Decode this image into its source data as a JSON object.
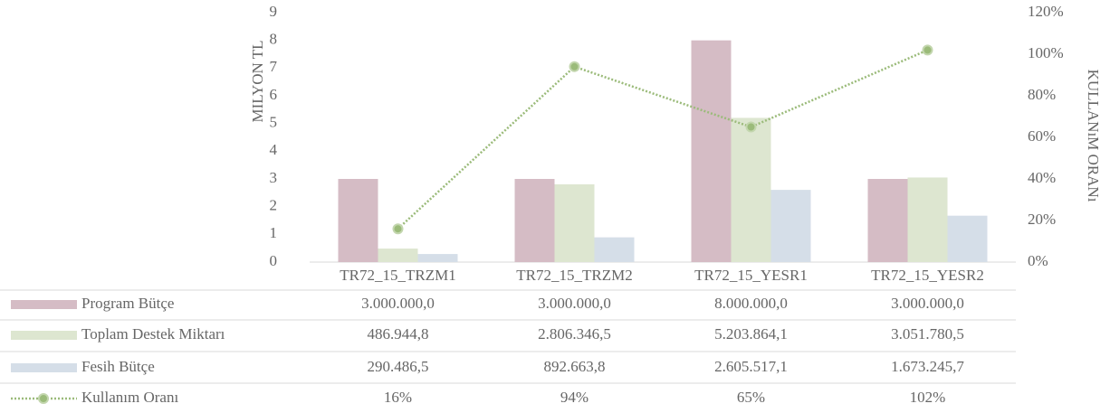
{
  "chart_data": {
    "type": "bar",
    "y_label": "MILYON TL",
    "y2_label": "KULLANıM ORANı",
    "categories": [
      "TR72_15_TRZM1",
      "TR72_15_TRZM2",
      "TR72_15_YESR1",
      "TR72_15_YESR2"
    ],
    "series": [
      {
        "name": "Program Bütçe",
        "color": "#d5bcc5",
        "type": "bar",
        "values": [
          3.0,
          3.0,
          8.0,
          3.0
        ],
        "value_labels": [
          "3.000.000,0",
          "3.000.000,0",
          "8.000.000,0",
          "3.000.000,0"
        ]
      },
      {
        "name": "Toplam Destek Miktarı",
        "color": "#dde6d0",
        "type": "bar",
        "values": [
          0.4869448,
          2.8063465,
          5.2038641,
          3.0517805
        ],
        "value_labels": [
          "486.944,8",
          "2.806.346,5",
          "5.203.864,1",
          "3.051.780,5"
        ]
      },
      {
        "name": "Fesih Bütçe",
        "color": "#d5dee8",
        "type": "bar",
        "values": [
          0.2904865,
          0.8926638,
          2.6055171,
          1.6732457
        ],
        "value_labels": [
          "290.486,5",
          "892.663,8",
          "2.605.517,1",
          "1.673.245,7"
        ]
      },
      {
        "name": "Kullanım Oranı",
        "color": "#9bbb7a",
        "type": "line",
        "axis": "y2",
        "values": [
          16,
          94,
          65,
          102
        ],
        "value_labels": [
          "16%",
          "94%",
          "65%",
          "102%"
        ]
      }
    ],
    "ylim": [
      0,
      9
    ],
    "yticks": [
      0,
      1,
      2,
      3,
      4,
      5,
      6,
      7,
      8,
      9
    ],
    "y2lim": [
      0,
      120
    ],
    "y2ticks": [
      {
        "value": 0,
        "label": "0%"
      },
      {
        "value": 20,
        "label": "20%"
      },
      {
        "value": 40,
        "label": "40%"
      },
      {
        "value": 60,
        "label": "60%"
      },
      {
        "value": 80,
        "label": "80%"
      },
      {
        "value": 100,
        "label": "100%"
      },
      {
        "value": 120,
        "label": "120%"
      }
    ],
    "grid": false
  }
}
